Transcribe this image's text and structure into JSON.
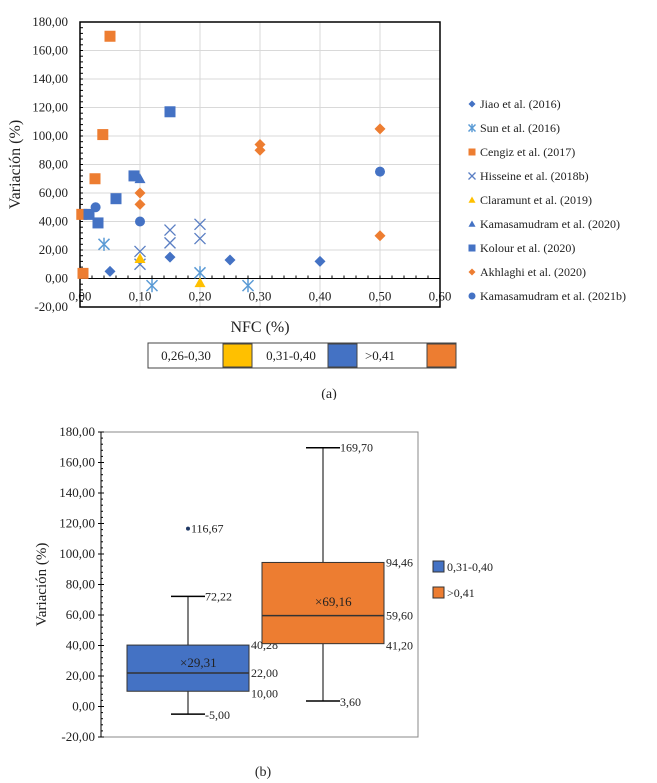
{
  "chart_data": [
    {
      "type": "scatter",
      "caption": "(a)",
      "xlabel": "NFC (%)",
      "ylabel": "Variación (%)",
      "xlim": [
        0,
        0.6
      ],
      "ylim": [
        -20,
        180
      ],
      "x_ticks": [
        "0,00",
        "0,10",
        "0,20",
        "0,30",
        "0,40",
        "0,50",
        "0,60"
      ],
      "y_ticks": [
        "180,00",
        "160,00",
        "140,00",
        "120,00",
        "100,00",
        "80,00",
        "60,00",
        "40,00",
        "20,00",
        "0,00",
        "-20,00"
      ],
      "grid": true,
      "legend_position": "right",
      "series": [
        {
          "name": "Jiao et al. (2016)",
          "marker": "diamond",
          "color": "#4472C4",
          "points": [
            [
              0.05,
              5
            ],
            [
              0.15,
              15
            ],
            [
              0.25,
              13
            ],
            [
              0.4,
              12
            ]
          ]
        },
        {
          "name": "Sun et al. (2016)",
          "marker": "asterisk",
          "color": "#5B9BD5",
          "points": [
            [
              0.04,
              24
            ],
            [
              0.12,
              -5
            ],
            [
              0.2,
              4
            ],
            [
              0.28,
              -5
            ]
          ]
        },
        {
          "name": "Cengiz et al. (2017)",
          "marker": "square",
          "color": "#ED7D31",
          "points": [
            [
              0.05,
              170
            ],
            [
              0.038,
              101
            ],
            [
              0.025,
              70
            ],
            [
              0.005,
              3.6
            ],
            [
              0.003,
              45
            ]
          ]
        },
        {
          "name": "Hisseine et al. (2018b)",
          "marker": "x",
          "color": "#5B7FC4",
          "points": [
            [
              0.1,
              19
            ],
            [
              0.1,
              10
            ],
            [
              0.15,
              34
            ],
            [
              0.15,
              25
            ],
            [
              0.2,
              38
            ],
            [
              0.2,
              28
            ]
          ]
        },
        {
          "name": "Claramunt et al. (2019)",
          "marker": "triangle",
          "color": "#FFC000",
          "points": [
            [
              0.1,
              14
            ],
            [
              0.2,
              -3
            ]
          ]
        },
        {
          "name": "Kamasamudram et al. (2020)",
          "marker": "triangle",
          "color": "#4472C4",
          "points": [
            [
              0.1,
              70
            ]
          ]
        },
        {
          "name": "Kolour et al. (2020)",
          "marker": "square",
          "color": "#4472C4",
          "points": [
            [
              0.15,
              117
            ],
            [
              0.09,
              72
            ],
            [
              0.06,
              56
            ],
            [
              0.03,
              39
            ],
            [
              0.015,
              45
            ]
          ]
        },
        {
          "name": "Akhlaghi et al. (2020)",
          "marker": "diamond",
          "color": "#ED7D31",
          "points": [
            [
              0.1,
              60
            ],
            [
              0.1,
              52
            ],
            [
              0.3,
              94
            ],
            [
              0.3,
              90
            ],
            [
              0.5,
              105
            ],
            [
              0.5,
              30
            ]
          ]
        },
        {
          "name": "Kamasamudram et al. (2021b)",
          "marker": "circle",
          "color": "#4472C4",
          "points": [
            [
              0.026,
              50
            ],
            [
              0.1,
              40
            ],
            [
              0.5,
              75
            ]
          ]
        }
      ],
      "color_legend": [
        {
          "label": "0,26-0,30",
          "color": "#FFC000"
        },
        {
          "label": "0,31-0,40",
          "color": "#4472C4"
        },
        {
          "label": ">0,41",
          "color": "#ED7D31"
        }
      ]
    },
    {
      "type": "boxplot",
      "caption": "(b)",
      "ylabel": "Variación (%)",
      "ylim": [
        -20,
        180
      ],
      "y_ticks": [
        "180,00",
        "160,00",
        "140,00",
        "120,00",
        "100,00",
        "80,00",
        "60,00",
        "40,00",
        "20,00",
        "0,00",
        "-20,00"
      ],
      "legend_position": "right",
      "series": [
        {
          "name": "0,31-0,40",
          "color": "#4472C4",
          "min": -5.0,
          "q1": 10.0,
          "median": 22.0,
          "q3": 40.28,
          "max": 72.22,
          "mean": 29.31,
          "outliers": [
            116.67
          ],
          "labels": {
            "min": "-5,00",
            "q1": "10,00",
            "median": "22,00",
            "q3": "40,28",
            "max": "72,22",
            "mean": "29,31",
            "outliers": [
              "116,67"
            ]
          }
        },
        {
          "name": ">0,41",
          "color": "#ED7D31",
          "min": 3.6,
          "q1": 41.2,
          "median": 59.6,
          "q3": 94.46,
          "max": 169.7,
          "mean": 69.16,
          "outliers": [],
          "labels": {
            "min": "3,60",
            "q1": "41,20",
            "median": "59,60",
            "q3": "94,46",
            "max": "169,70",
            "mean": "69,16",
            "outliers": []
          }
        }
      ]
    }
  ]
}
